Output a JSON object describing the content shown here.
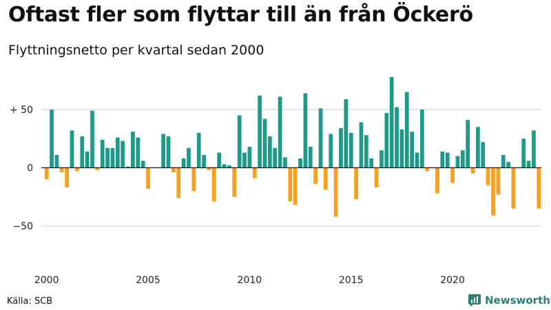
{
  "title": "Oftast fler som flyttar till än från Öckerö",
  "subtitle": "Flyttningsnetto per kvartal sedan 2000",
  "source": "Källa: SCB",
  "brand": {
    "name": "Newsworthy",
    "icon": "newsworthy-logo-icon"
  },
  "colors": {
    "positive": "#1f9a8a",
    "negative": "#f5a01e",
    "zero_line": "#111111",
    "grid": "#cccccc"
  },
  "chart_data": {
    "type": "bar",
    "title": "Oftast fler som flyttar till än från Öckerö",
    "subtitle": "Flyttningsnetto per kvartal sedan 2000",
    "xlabel": "",
    "ylabel": "",
    "x_start": "2000 Q1",
    "x_tick_labels": [
      "2000",
      "2005",
      "2010",
      "2015",
      "2020"
    ],
    "y_ticks": [
      50,
      0,
      -50
    ],
    "y_tick_labels": [
      "+ 50",
      "0",
      "−50"
    ],
    "ylim": [
      -85,
      85
    ],
    "grid": true,
    "values": [
      -10,
      50,
      11,
      -4,
      -17,
      32,
      -3,
      27,
      14,
      49,
      -2,
      24,
      17,
      17,
      26,
      23,
      1,
      31,
      26,
      6,
      -18,
      0,
      0,
      29,
      27,
      -4,
      -26,
      8,
      17,
      -20,
      30,
      11,
      -2,
      -29,
      13,
      3,
      2,
      -25,
      45,
      13,
      18,
      -9,
      62,
      42,
      27,
      17,
      61,
      9,
      -29,
      -32,
      8,
      64,
      18,
      -14,
      51,
      -19,
      29,
      -42,
      34,
      59,
      30,
      -27,
      39,
      28,
      8,
      -17,
      15,
      47,
      78,
      52,
      33,
      65,
      31,
      13,
      50,
      -3,
      0,
      -22,
      14,
      13,
      -13,
      10,
      15,
      41,
      -5,
      35,
      22,
      -15,
      -41,
      -23,
      11,
      5,
      -35,
      0,
      25,
      6,
      32,
      -35
    ]
  }
}
